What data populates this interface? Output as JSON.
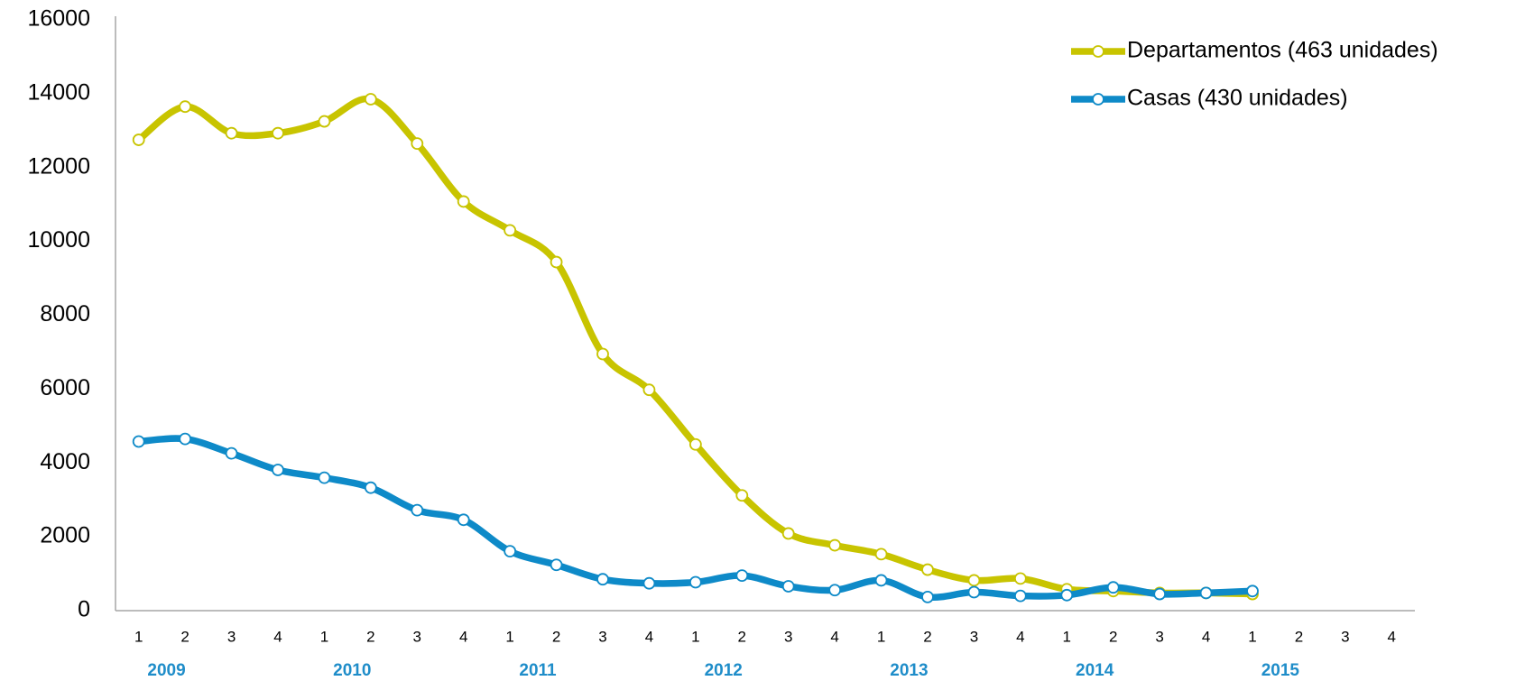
{
  "chart_data": {
    "type": "line",
    "categories": [
      "1",
      "2",
      "3",
      "4",
      "1",
      "2",
      "3",
      "4",
      "1",
      "2",
      "3",
      "4",
      "1",
      "2",
      "3",
      "4",
      "1",
      "2",
      "3",
      "4",
      "1",
      "2",
      "3",
      "4",
      "1",
      "2",
      "3",
      "4"
    ],
    "category_groups": [
      "2009",
      "2010",
      "2011",
      "2012",
      "2013",
      "2014",
      "2015"
    ],
    "series": [
      {
        "name": "Departamentos (463 unidades)",
        "color": "#c8c400",
        "values": [
          12750,
          13650,
          12930,
          12930,
          13250,
          13850,
          12650,
          11080,
          10300,
          9440,
          6950,
          5980,
          4500,
          3120,
          2090,
          1770,
          1530,
          1110,
          820,
          870,
          580,
          530,
          480,
          480,
          450,
          null,
          null,
          null
        ]
      },
      {
        "name": "Casas (430 unidades)",
        "color": "#0e8ac8",
        "values": [
          4580,
          4650,
          4260,
          3810,
          3600,
          3330,
          2720,
          2460,
          1610,
          1240,
          850,
          740,
          770,
          950,
          660,
          555,
          820,
          370,
          500,
          400,
          420,
          630,
          450,
          480,
          530,
          null,
          null,
          null
        ]
      }
    ],
    "ylim": [
      0,
      16000
    ],
    "yticks": [
      0,
      2000,
      4000,
      6000,
      8000,
      10000,
      12000,
      14000,
      16000
    ],
    "grid": false,
    "legend": "top-right",
    "smooth": true
  }
}
